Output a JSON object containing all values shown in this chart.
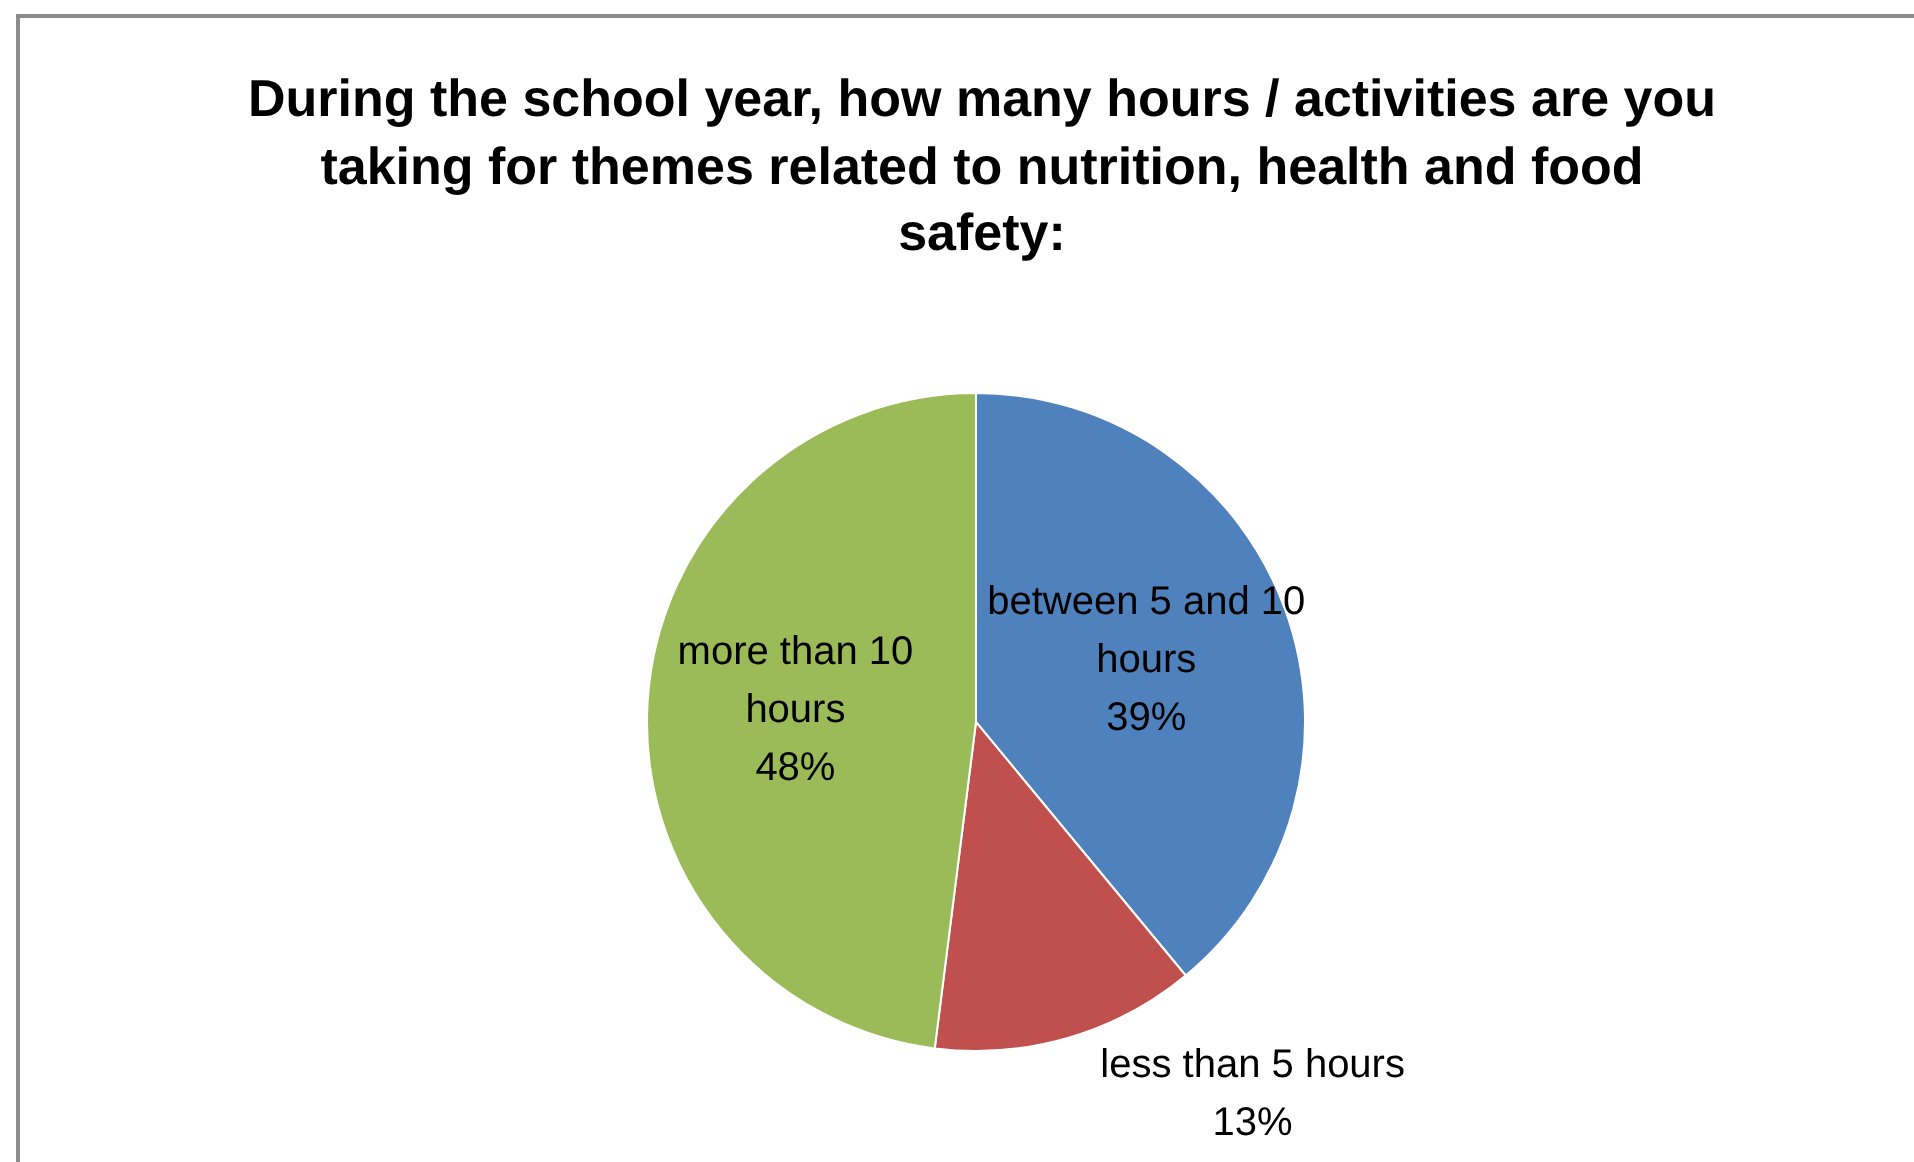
{
  "chart_data": {
    "type": "pie",
    "title": "During the school year, how many hours / activities are you taking for themes related to nutrition, health and food safety:",
    "categories": [
      "between 5 and 10 hours",
      "less than 5 hours",
      "more than 10 hours"
    ],
    "values": [
      39,
      13,
      48
    ],
    "value_labels": [
      "39%",
      "13%",
      "48%"
    ],
    "colors": [
      "#4f81bd",
      "#c0504d",
      "#9bbb59"
    ],
    "legend": false
  }
}
